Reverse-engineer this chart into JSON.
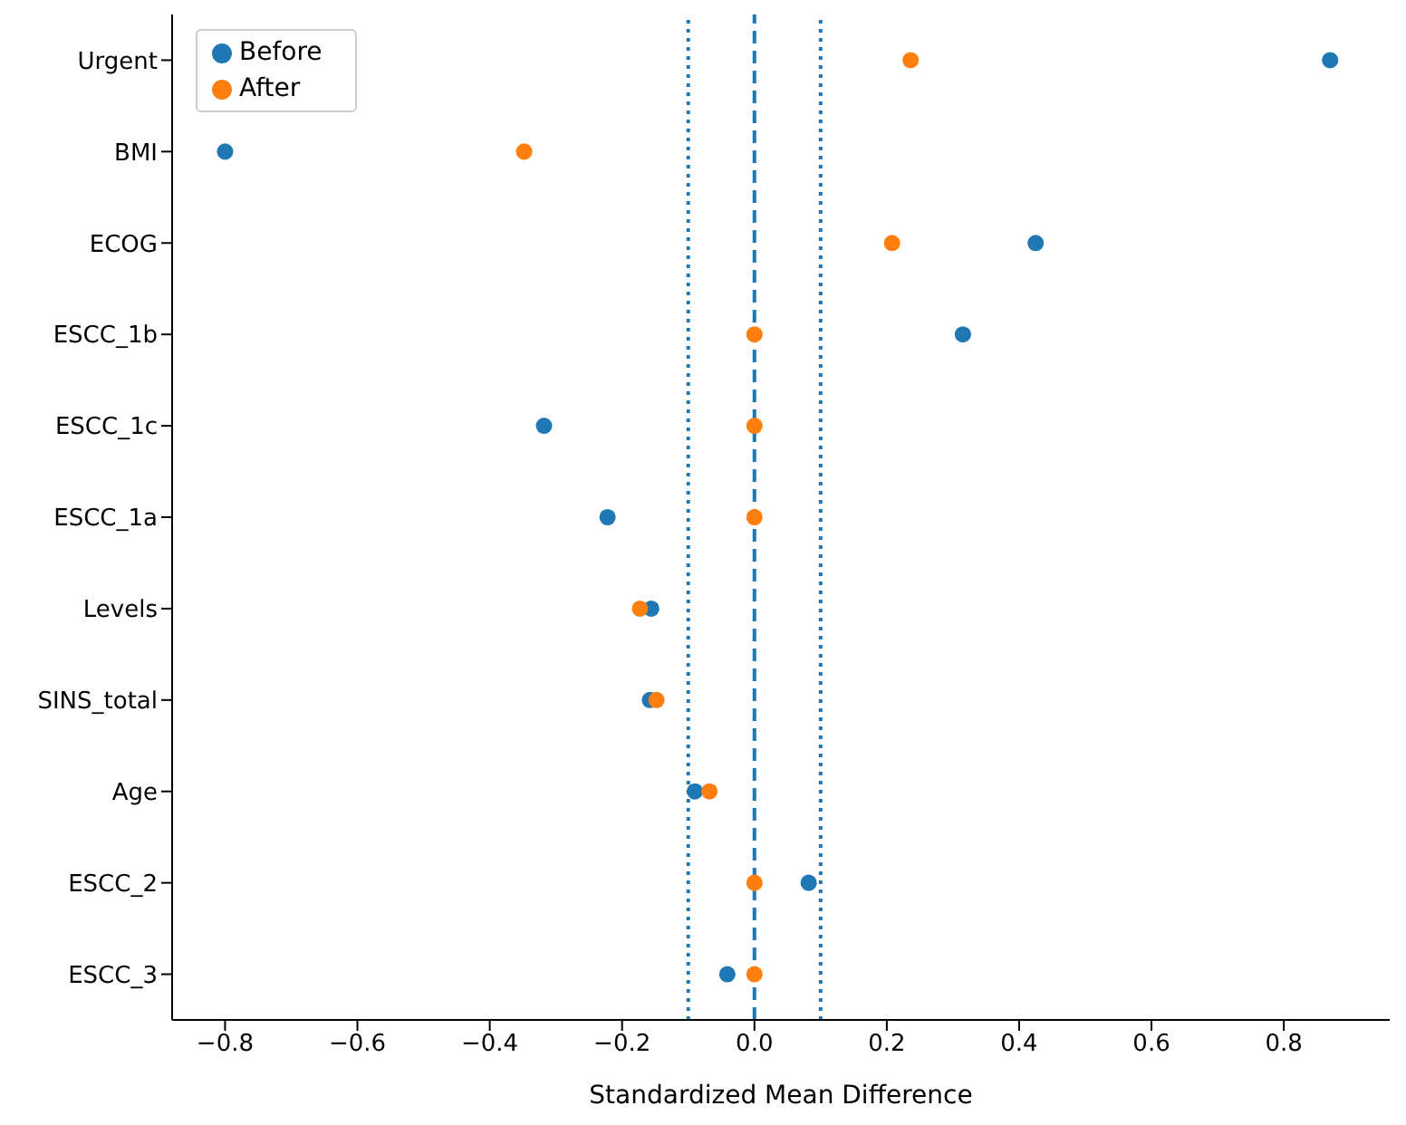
{
  "chart_data": {
    "type": "scatter",
    "xlabel": "Standardized Mean Difference",
    "categories": [
      "Urgent",
      "BMI",
      "ECOG",
      "ESCC_1b",
      "ESCC_1c",
      "ESCC_1a",
      "Levels",
      "SINS_total",
      "Age",
      "ESCC_2",
      "ESCC_3"
    ],
    "orientation": "horizontal",
    "series": [
      {
        "name": "Before",
        "color": "#1f77b4",
        "values": [
          0.87,
          -0.8,
          0.425,
          0.315,
          -0.318,
          -0.222,
          -0.156,
          -0.158,
          -0.09,
          0.082,
          -0.041
        ]
      },
      {
        "name": "After",
        "color": "#ff7f0e",
        "values": [
          0.236,
          -0.348,
          0.208,
          0,
          0,
          0,
          -0.173,
          -0.148,
          -0.068,
          0,
          0
        ]
      }
    ],
    "xlim": [
      -0.88,
      0.96
    ],
    "xticks": [
      -0.8,
      -0.6,
      -0.4,
      -0.2,
      {
        "value": 0,
        "label": "0.0"
      },
      0.2,
      0.4,
      0.6,
      0.8
    ],
    "ref_lines": [
      {
        "axis": "x",
        "value": 0,
        "color": "#1f77b4",
        "line_style": "dashed"
      },
      {
        "axis": "x",
        "value": -0.1,
        "color": "#1f77b4",
        "line_style": "dotted"
      },
      {
        "axis": "x",
        "value": 0.1,
        "color": "#1f77b4",
        "line_style": "dotted"
      }
    ],
    "legend": "top left",
    "grid": false,
    "marker": "circle"
  }
}
